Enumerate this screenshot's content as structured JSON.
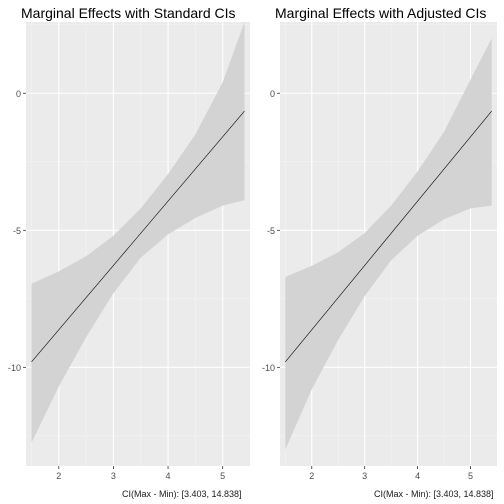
{
  "chart_data": [
    {
      "type": "line",
      "title": "Marginal Effects with Standard CIs",
      "xlabel": "",
      "ylabel": "",
      "x_range": [
        1.4,
        5.5
      ],
      "y_range": [
        -13.6,
        2.6
      ],
      "x_ticks": [
        2,
        3,
        4,
        5
      ],
      "y_ticks": [
        -10,
        -5,
        0
      ],
      "grid": true,
      "series": [
        {
          "kind": "estimate",
          "x": [
            1.5,
            5.4
          ],
          "y": [
            -9.8,
            -0.65
          ]
        },
        {
          "kind": "ci_band",
          "x": [
            1.5,
            2.0,
            2.5,
            3.0,
            3.5,
            4.0,
            4.5,
            5.0,
            5.4
          ],
          "upper": [
            -6.95,
            -6.5,
            -5.95,
            -5.2,
            -4.2,
            -2.95,
            -1.5,
            0.4,
            2.6
          ],
          "lower": [
            -12.75,
            -10.7,
            -8.9,
            -7.3,
            -6.0,
            -5.15,
            -4.55,
            -4.1,
            -3.9
          ]
        }
      ],
      "caption": ""
    },
    {
      "type": "line",
      "title": "Marginal Effects with Adjusted CIs",
      "xlabel": "",
      "ylabel": "",
      "x_range": [
        1.4,
        5.5
      ],
      "y_range": [
        -13.6,
        2.6
      ],
      "x_ticks": [
        2,
        3,
        4,
        5
      ],
      "y_ticks": [
        -10,
        -5,
        0
      ],
      "grid": true,
      "series": [
        {
          "kind": "estimate",
          "x": [
            1.5,
            5.4
          ],
          "y": [
            -9.8,
            -0.65
          ]
        },
        {
          "kind": "ci_band",
          "x": [
            1.5,
            2.0,
            2.5,
            3.0,
            3.5,
            4.0,
            4.5,
            5.0,
            5.4
          ],
          "upper": [
            -6.7,
            -6.3,
            -5.8,
            -5.1,
            -4.1,
            -2.85,
            -1.4,
            0.5,
            2.0
          ],
          "lower": [
            -13.0,
            -10.8,
            -9.0,
            -7.4,
            -6.1,
            -5.2,
            -4.6,
            -4.2,
            -4.1
          ]
        }
      ],
      "caption": ""
    }
  ],
  "captions": [
    "CI(Max - Min): [3.403, 14.838]",
    "CI(Max - Min): [3.403, 14.838]"
  ],
  "colors": {
    "panel_bg": "#ebebeb",
    "grid_major": "#ffffff",
    "grid_minor": "#f4f4f4",
    "band": "#d3d3d3",
    "line": "#000000",
    "tick_text": "#4d4d4d",
    "tick_mark": "#333333"
  }
}
